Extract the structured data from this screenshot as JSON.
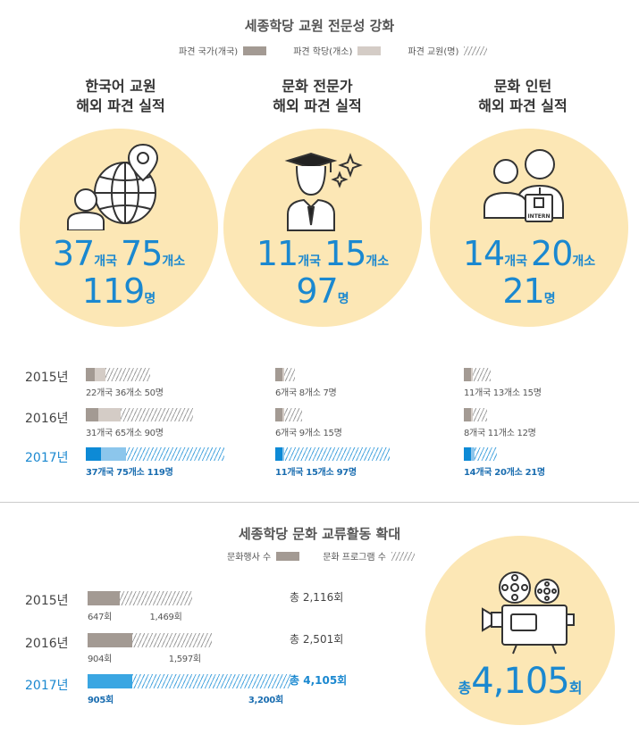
{
  "top": {
    "title": "세종학당 교원 전문성 강화",
    "legend": [
      {
        "label": "파견 국가(개국)",
        "style": "gray"
      },
      {
        "label": "파견 학당(개소)",
        "style": "light"
      },
      {
        "label": "파견 교원(명)",
        "style": "hatch"
      }
    ]
  },
  "categories": [
    {
      "title1": "한국어 교원",
      "title2": "해외 파견 실적",
      "icon": "globe-person-icon",
      "big": {
        "countries": "37",
        "countries_unit": "개국",
        "schools": "75",
        "schools_unit": "개소",
        "people": "119",
        "people_unit": "명"
      }
    },
    {
      "title1": "문화 전문가",
      "title2": "해외 파견 실적",
      "icon": "graduate-icon",
      "big": {
        "countries": "11",
        "countries_unit": "개국",
        "schools": "15",
        "schools_unit": "개소",
        "people": "97",
        "people_unit": "명"
      }
    },
    {
      "title1": "문화 인턴",
      "title2": "해외 파견 실적",
      "icon": "intern-icon",
      "badge": "INTERN",
      "big": {
        "countries": "14",
        "countries_unit": "개국",
        "schools": "20",
        "schools_unit": "개소",
        "people": "21",
        "people_unit": "명"
      }
    }
  ],
  "years": [
    "2015년",
    "2016년",
    "2017년"
  ],
  "bottom": {
    "title": "세종학당 문화 교류활동 확대",
    "legend": [
      {
        "label": "문화행사 수",
        "style": "gray"
      },
      {
        "label": "문화 프로그램 수",
        "style": "hatch"
      }
    ],
    "big_prefix": "총",
    "big_value": "4,105",
    "big_unit": "회",
    "icon": "film-projector-icon"
  },
  "chart_data": [
    {
      "type": "bar",
      "title": "한국어 교원 해외 파견 실적",
      "categories": [
        "2015년",
        "2016년",
        "2017년"
      ],
      "series": [
        {
          "name": "파견 국가(개국)",
          "values": [
            22,
            31,
            37
          ]
        },
        {
          "name": "파견 학당(개소)",
          "values": [
            36,
            65,
            75
          ]
        },
        {
          "name": "파견 교원(명)",
          "values": [
            50,
            90,
            119
          ]
        }
      ],
      "labels": [
        "22개국 36개소 50명",
        "31개국 65개소 90명",
        "37개국 75개소 119명"
      ]
    },
    {
      "type": "bar",
      "title": "문화 전문가 해외 파견 실적",
      "categories": [
        "2015년",
        "2016년",
        "2017년"
      ],
      "series": [
        {
          "name": "파견 국가(개국)",
          "values": [
            6,
            6,
            11
          ]
        },
        {
          "name": "파견 학당(개소)",
          "values": [
            8,
            9,
            15
          ]
        },
        {
          "name": "파견 교원(명)",
          "values": [
            7,
            15,
            97
          ]
        }
      ],
      "labels": [
        "6개국 8개소 7명",
        "6개국 9개소 15명",
        "11개국 15개소 97명"
      ]
    },
    {
      "type": "bar",
      "title": "문화 인턴 해외 파견 실적",
      "categories": [
        "2015년",
        "2016년",
        "2017년"
      ],
      "series": [
        {
          "name": "파견 국가(개국)",
          "values": [
            11,
            8,
            14
          ]
        },
        {
          "name": "파견 학당(개소)",
          "values": [
            13,
            11,
            20
          ]
        },
        {
          "name": "파견 교원(명)",
          "values": [
            15,
            12,
            21
          ]
        }
      ],
      "labels": [
        "11개국 13개소 15명",
        "8개국 11개소 12명",
        "14개국 20개소 21명"
      ]
    },
    {
      "type": "bar",
      "title": "세종학당 문화 교류활동 확대",
      "categories": [
        "2015년",
        "2016년",
        "2017년"
      ],
      "series": [
        {
          "name": "문화행사 수",
          "values": [
            647,
            904,
            905
          ],
          "labels": [
            "647회",
            "904회",
            "905회"
          ]
        },
        {
          "name": "문화 프로그램 수",
          "values": [
            1469,
            1597,
            3200
          ],
          "labels": [
            "1,469회",
            "1,597회",
            "3,200회"
          ]
        }
      ],
      "totals": [
        "총 2,116회",
        "총 2,501회",
        "총 4,105회"
      ]
    }
  ],
  "colors": {
    "gray": "#a39a93",
    "light": "#d4ccc6",
    "blue": "#0d8ad6",
    "light_blue": "#8cc6ec",
    "circle": "#fce7b5",
    "accent_text": "#1a88d0"
  }
}
